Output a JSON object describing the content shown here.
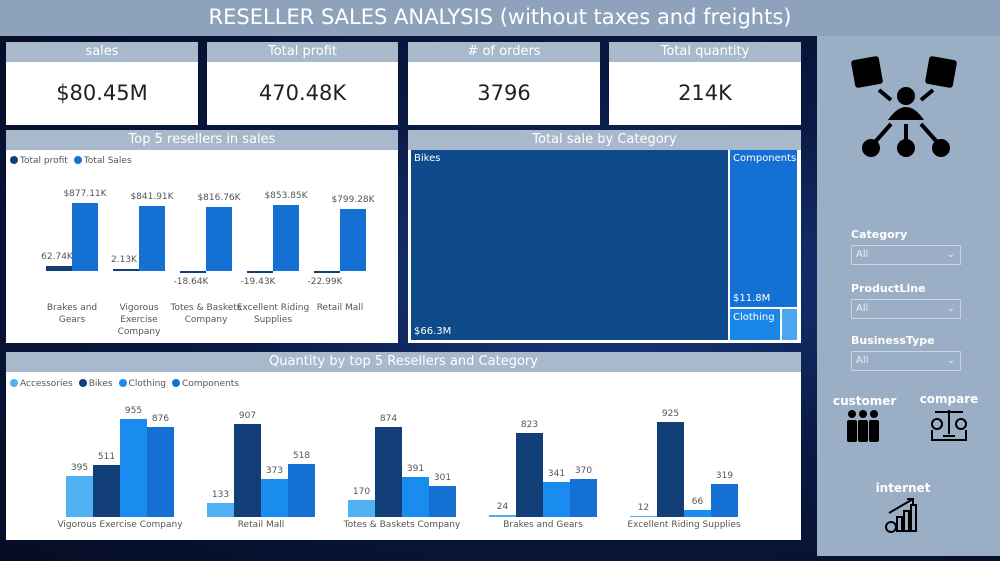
{
  "title": "RESELLER SALES ANALYSIS (without taxes and freights)",
  "kpis": [
    {
      "label": "sales",
      "value": "$80.45M"
    },
    {
      "label": "Total profit",
      "value": "470.48K"
    },
    {
      "label": "# of orders",
      "value": "3796"
    },
    {
      "label": "Total quantity",
      "value": "214K"
    }
  ],
  "top5": {
    "title": "Top 5 resellers in sales",
    "legend": [
      "Total profit",
      "Total Sales"
    ],
    "colors": [
      "#123f78",
      "#1570d4"
    ],
    "categories": [
      "Brakes and Gears",
      "Vigorous Exercise Company",
      "Totes & Baskets Company",
      "Excellent Riding Supplies",
      "Retail Mall"
    ],
    "profit": [
      62.74,
      2.13,
      -18.64,
      -19.43,
      -22.99
    ],
    "profit_labels": [
      "62.74K",
      "2.13K",
      "-18.64K",
      "-19.43K",
      "-22.99K"
    ],
    "sales": [
      877.11,
      841.91,
      816.76,
      853.85,
      799.28
    ],
    "sales_labels": [
      "$877.11K",
      "$841.91K",
      "$816.76K",
      "$853.85K",
      "$799.28K"
    ]
  },
  "treemap": {
    "title": "Total sale by Category",
    "items": [
      {
        "name": "Bikes",
        "label": "$66.3M",
        "color": "#0f4a8a"
      },
      {
        "name": "Components",
        "label": "$11.8M",
        "color": "#1570d4"
      },
      {
        "name": "Clothing",
        "label": "",
        "color": "#1a86e8"
      },
      {
        "name": "Accessories",
        "label": "",
        "color": "#4aa6f0"
      }
    ]
  },
  "qty": {
    "title": "Quantity by top 5 Resellers and Category",
    "series": [
      {
        "name": "Accessories",
        "color": "#4fb0f2",
        "values": [
          395,
          133,
          170,
          24,
          12
        ]
      },
      {
        "name": "Bikes",
        "color": "#123f78",
        "values": [
          511,
          907,
          874,
          823,
          925
        ]
      },
      {
        "name": "Clothing",
        "color": "#1a8cf0",
        "values": [
          955,
          373,
          391,
          341,
          66
        ]
      },
      {
        "name": "Components",
        "color": "#1570d4",
        "values": [
          876,
          518,
          301,
          370,
          319
        ]
      }
    ],
    "categories": [
      "Vigorous Exercise Company",
      "Retail Mall",
      "Totes & Baskets Company",
      "Brakes and Gears",
      "Excellent Riding Supplies"
    ]
  },
  "slicers": [
    {
      "label": "Category",
      "value": "All"
    },
    {
      "label": "ProductLine",
      "value": "All"
    },
    {
      "label": "BusinessType",
      "value": "All"
    }
  ],
  "nav": {
    "customer": "customer",
    "compare": "compare",
    "internet": "internet"
  }
}
